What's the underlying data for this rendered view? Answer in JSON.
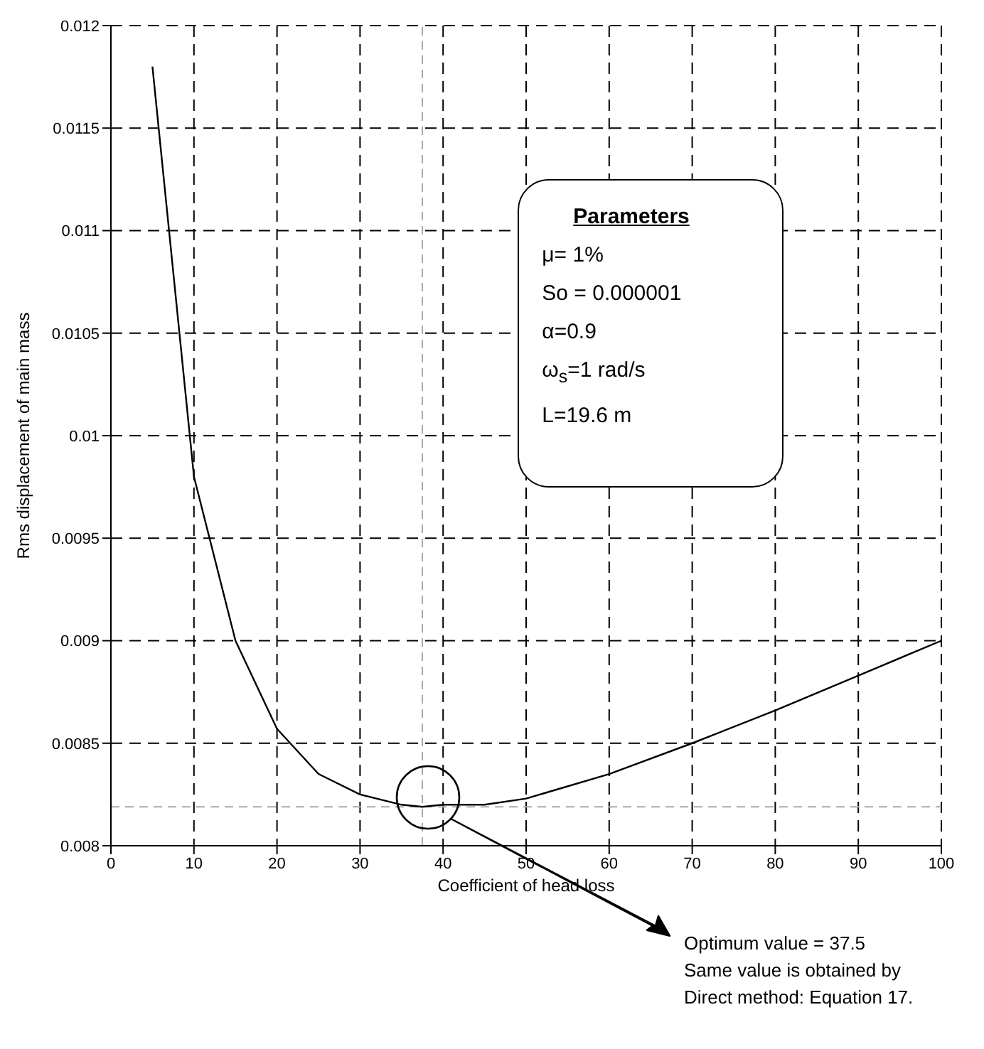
{
  "chart_data": {
    "type": "line",
    "xlabel": "Coefficient of head loss",
    "ylabel": "Rms displacement of main mass",
    "x": [
      5,
      10,
      15,
      20,
      25,
      30,
      35,
      37.5,
      40,
      45,
      50,
      60,
      70,
      80,
      90,
      100
    ],
    "series": [
      {
        "color": "#000000",
        "values": [
          0.0118,
          0.0098,
          0.009,
          0.00857,
          0.00835,
          0.00825,
          0.0082,
          0.00819,
          0.0082,
          0.0082,
          0.00823,
          0.00835,
          0.0085,
          0.00866,
          0.00883,
          0.009
        ]
      }
    ],
    "xlim": [
      0,
      100
    ],
    "xticks": [
      0,
      10,
      20,
      30,
      40,
      50,
      60,
      70,
      80,
      90,
      100
    ],
    "ylim": [
      0.008,
      0.012
    ],
    "yticks": [
      0.008,
      0.0085,
      0.009,
      0.0095,
      0.01,
      0.0105,
      0.011,
      0.0115,
      0.012
    ],
    "grid": true,
    "line_style": "solid",
    "marker": "none",
    "ref_lines": [
      {
        "axis": "y",
        "value": 0.00819,
        "color": "#aaaaaa",
        "line_style": "dashed"
      },
      {
        "axis": "x",
        "value": 37.5,
        "color": "#aaaaaa",
        "line_style": "dashed"
      }
    ],
    "annotations": [
      "Parameters",
      "μ= 1%",
      "So = 0.000001",
      "α=0.9",
      "ω$_{s}$=1 rad/s",
      "L=19.6 m",
      "Optimum value = 37.5\nSame value is obtained by\nDirect method: Equation 17."
    ]
  }
}
